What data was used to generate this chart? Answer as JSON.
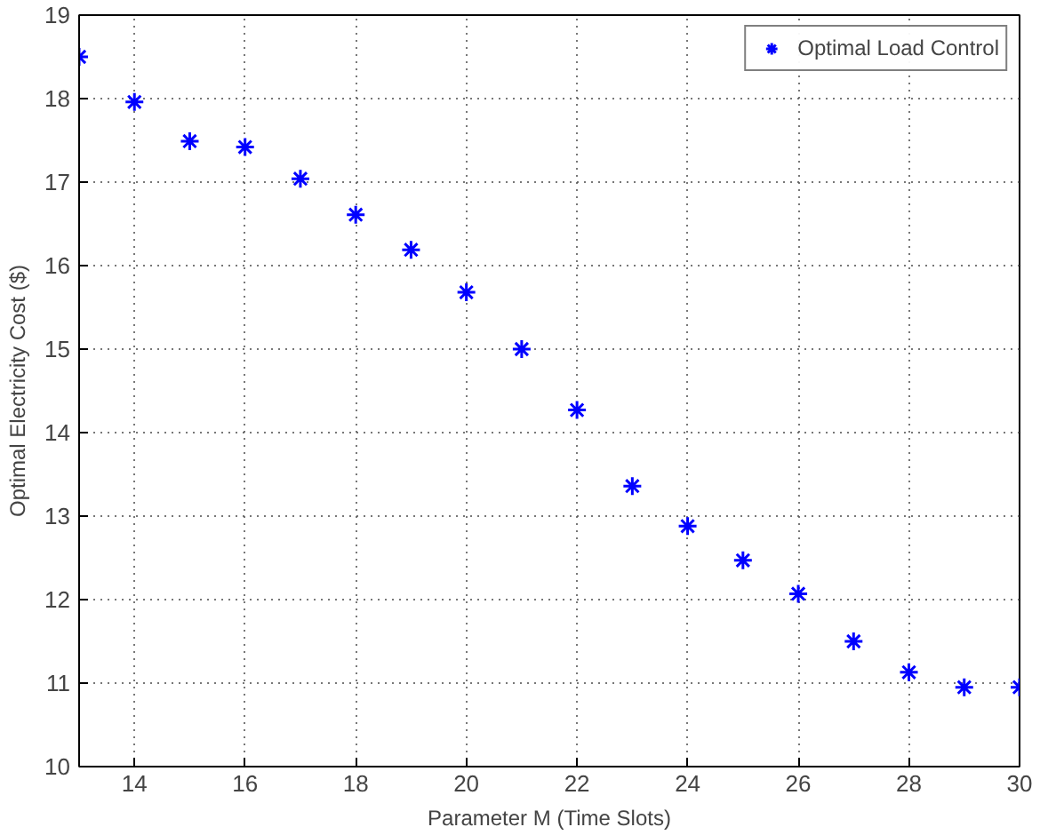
{
  "chart_data": {
    "type": "scatter",
    "xlabel": "Parameter M (Time Slots)",
    "ylabel": "Optimal Electricity Cost ($)",
    "x": [
      13,
      14,
      15,
      16,
      17,
      18,
      19,
      20,
      21,
      22,
      23,
      24,
      25,
      26,
      27,
      28,
      29,
      30
    ],
    "series": [
      {
        "name": "Optimal Load Control",
        "color": "#0000ff",
        "values": [
          18.5,
          17.96,
          17.49,
          17.42,
          17.04,
          16.61,
          16.19,
          15.68,
          15.0,
          14.27,
          13.36,
          12.88,
          12.47,
          12.07,
          11.5,
          11.13,
          10.95,
          10.95
        ]
      }
    ],
    "xlim": [
      13,
      30
    ],
    "xticks": [
      14,
      16,
      18,
      20,
      22,
      24,
      26,
      28,
      30
    ],
    "ylim": [
      10,
      19
    ],
    "yticks": [
      10,
      11,
      12,
      13,
      14,
      15,
      16,
      17,
      18,
      19
    ],
    "grid": true,
    "legend": "top right",
    "marker": "cross"
  }
}
